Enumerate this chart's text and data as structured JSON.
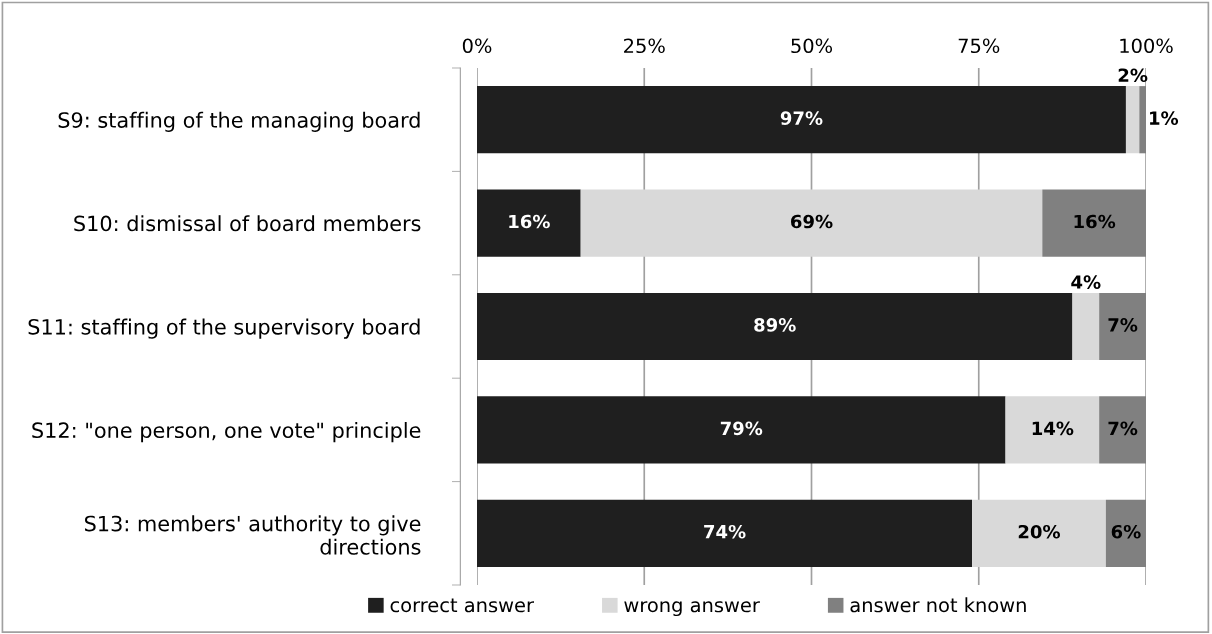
{
  "chart_data": {
    "type": "bar",
    "orientation": "horizontal",
    "stacked": true,
    "categories": [
      "S9: staffing of the managing board",
      "S10: dismissal of board members",
      "S11: staffing of the supervisory board",
      "S12: \"one person, one vote\" principle",
      "S13: members' authority to give directions"
    ],
    "series": [
      {
        "name": "correct answer",
        "color": "#1f1f1f",
        "values": [
          97,
          15.5,
          89,
          79,
          74
        ],
        "value_labels": [
          "97%",
          "16%",
          "89%",
          "79%",
          "74%"
        ]
      },
      {
        "name": "wrong answer",
        "color": "#d9d9d9",
        "values": [
          2,
          69,
          4,
          14,
          20
        ],
        "value_labels": [
          "2%",
          "69%",
          "4%",
          "14%",
          "20%"
        ]
      },
      {
        "name": "answer not known",
        "color": "#808080",
        "values": [
          1,
          15.5,
          7,
          7,
          6
        ],
        "value_labels": [
          "1%",
          "16%",
          "7%",
          "7%",
          "6%"
        ]
      }
    ],
    "xlim": [
      0,
      100
    ],
    "xticks": [
      {
        "value": 0,
        "label": "0%"
      },
      {
        "value": 25,
        "label": "25%"
      },
      {
        "value": 50,
        "label": "50%"
      },
      {
        "value": 75,
        "label": "75%"
      },
      {
        "value": 100,
        "label": "100%"
      }
    ],
    "grid": "x",
    "legend": "bottom"
  }
}
